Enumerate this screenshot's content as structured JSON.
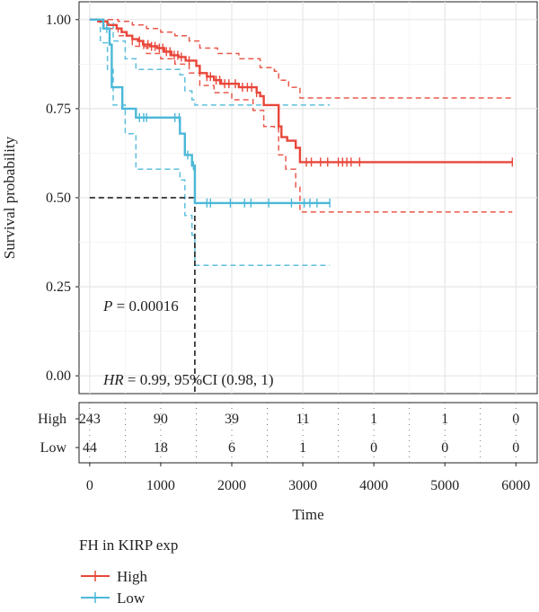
{
  "chart_data": {
    "type": "line",
    "subtype": "kaplan-meier",
    "title": "",
    "xlabel": "Time",
    "ylabel": "Survival probability",
    "xlim": [
      -150,
      6300
    ],
    "ylim": [
      -0.05,
      1.05
    ],
    "x_ticks": [
      "0",
      "1000",
      "2000",
      "3000",
      "4000",
      "5000",
      "6000"
    ],
    "y_ticks": [
      "0.00",
      "0.25",
      "0.50",
      "0.75",
      "1.00"
    ],
    "grid": true,
    "legend": {
      "title": "FH in KIRP exp",
      "position": "bottom-left",
      "entries": [
        "High",
        "Low"
      ]
    },
    "colors": {
      "High": "#e8473a",
      "Low": "#4bb8d8"
    },
    "annotations": {
      "p_value": "P = 0.00016",
      "p_label": "P",
      "p_rest": " = 0.00016",
      "hr": "HR = 0.99, 95%CI (0.98, 1)",
      "hr_label": "HR",
      "hr_rest": " = 0.99, 95%CI (0.98, 1)"
    },
    "median_line": {
      "y": 0.5,
      "x": 1480
    },
    "series": [
      {
        "name": "High",
        "color": "#e8473a",
        "steps": [
          [
            0,
            1.0
          ],
          [
            120,
            0.995
          ],
          [
            250,
            0.985
          ],
          [
            380,
            0.975
          ],
          [
            450,
            0.965
          ],
          [
            520,
            0.955
          ],
          [
            600,
            0.945
          ],
          [
            680,
            0.94
          ],
          [
            750,
            0.93
          ],
          [
            850,
            0.925
          ],
          [
            950,
            0.92
          ],
          [
            1050,
            0.91
          ],
          [
            1150,
            0.9
          ],
          [
            1250,
            0.895
          ],
          [
            1350,
            0.885
          ],
          [
            1500,
            0.87
          ],
          [
            1550,
            0.85
          ],
          [
            1650,
            0.84
          ],
          [
            1750,
            0.83
          ],
          [
            1850,
            0.82
          ],
          [
            2100,
            0.81
          ],
          [
            2350,
            0.795
          ],
          [
            2400,
            0.785
          ],
          [
            2450,
            0.76
          ],
          [
            2600,
            0.76
          ],
          [
            2660,
            0.7
          ],
          [
            2700,
            0.67
          ],
          [
            2780,
            0.66
          ],
          [
            2900,
            0.64
          ],
          [
            2960,
            0.6
          ],
          [
            5950,
            0.6
          ]
        ],
        "lower": [
          [
            0,
            1.0
          ],
          [
            200,
            0.975
          ],
          [
            400,
            0.955
          ],
          [
            600,
            0.925
          ],
          [
            800,
            0.905
          ],
          [
            1000,
            0.89
          ],
          [
            1200,
            0.875
          ],
          [
            1400,
            0.85
          ],
          [
            1550,
            0.815
          ],
          [
            1750,
            0.795
          ],
          [
            2000,
            0.775
          ],
          [
            2300,
            0.745
          ],
          [
            2450,
            0.7
          ],
          [
            2600,
            0.695
          ],
          [
            2660,
            0.62
          ],
          [
            2760,
            0.58
          ],
          [
            2900,
            0.53
          ],
          [
            2960,
            0.46
          ],
          [
            5950,
            0.46
          ]
        ],
        "upper": [
          [
            0,
            1.0
          ],
          [
            200,
            1.0
          ],
          [
            400,
            0.995
          ],
          [
            600,
            0.985
          ],
          [
            800,
            0.975
          ],
          [
            1000,
            0.965
          ],
          [
            1200,
            0.955
          ],
          [
            1400,
            0.94
          ],
          [
            1550,
            0.92
          ],
          [
            1800,
            0.905
          ],
          [
            2100,
            0.89
          ],
          [
            2400,
            0.865
          ],
          [
            2600,
            0.855
          ],
          [
            2660,
            0.83
          ],
          [
            2800,
            0.81
          ],
          [
            2960,
            0.78
          ],
          [
            5950,
            0.78
          ]
        ],
        "censor_x": [
          700,
          760,
          820,
          870,
          920,
          980,
          1030,
          1080,
          1130,
          1190,
          1240,
          1290,
          1400,
          1650,
          1700,
          1780,
          1830,
          1900,
          1960,
          2050,
          2150,
          2220,
          2280,
          2350,
          3050,
          3120,
          3250,
          3350,
          3500,
          3560,
          3620,
          3680,
          3800,
          5950
        ]
      },
      {
        "name": "Low",
        "color": "#4bb8d8",
        "steps": [
          [
            0,
            1.0
          ],
          [
            190,
            0.975
          ],
          [
            280,
            0.93
          ],
          [
            310,
            0.81
          ],
          [
            460,
            0.75
          ],
          [
            650,
            0.725
          ],
          [
            1270,
            0.68
          ],
          [
            1340,
            0.62
          ],
          [
            1440,
            0.59
          ],
          [
            1480,
            0.485
          ],
          [
            3380,
            0.485
          ]
        ],
        "lower": [
          [
            0,
            1.0
          ],
          [
            150,
            0.935
          ],
          [
            250,
            0.86
          ],
          [
            330,
            0.76
          ],
          [
            500,
            0.68
          ],
          [
            650,
            0.58
          ],
          [
            1270,
            0.55
          ],
          [
            1340,
            0.45
          ],
          [
            1440,
            0.395
          ],
          [
            1480,
            0.31
          ],
          [
            3380,
            0.31
          ]
        ],
        "upper": [
          [
            0,
            1.0
          ],
          [
            180,
            1.0
          ],
          [
            250,
            0.99
          ],
          [
            330,
            0.94
          ],
          [
            500,
            0.89
          ],
          [
            650,
            0.86
          ],
          [
            1270,
            0.845
          ],
          [
            1340,
            0.8
          ],
          [
            1440,
            0.775
          ],
          [
            1480,
            0.76
          ],
          [
            3380,
            0.76
          ]
        ],
        "censor_x": [
          240,
          700,
          760,
          800,
          1200,
          1260,
          1380,
          1460,
          1650,
          1700,
          1980,
          2180,
          2270,
          2520,
          2840,
          3020,
          3100,
          3200,
          3380
        ]
      }
    ],
    "risk_table": {
      "times": [
        0,
        1000,
        2000,
        3000,
        4000,
        5000,
        6000
      ],
      "rows": [
        {
          "label": "High",
          "values": [
            "243",
            "90",
            "39",
            "11",
            "1",
            "1",
            "0"
          ]
        },
        {
          "label": "Low",
          "values": [
            "44",
            "18",
            "6",
            "1",
            "0",
            "0",
            "0"
          ]
        }
      ]
    }
  }
}
